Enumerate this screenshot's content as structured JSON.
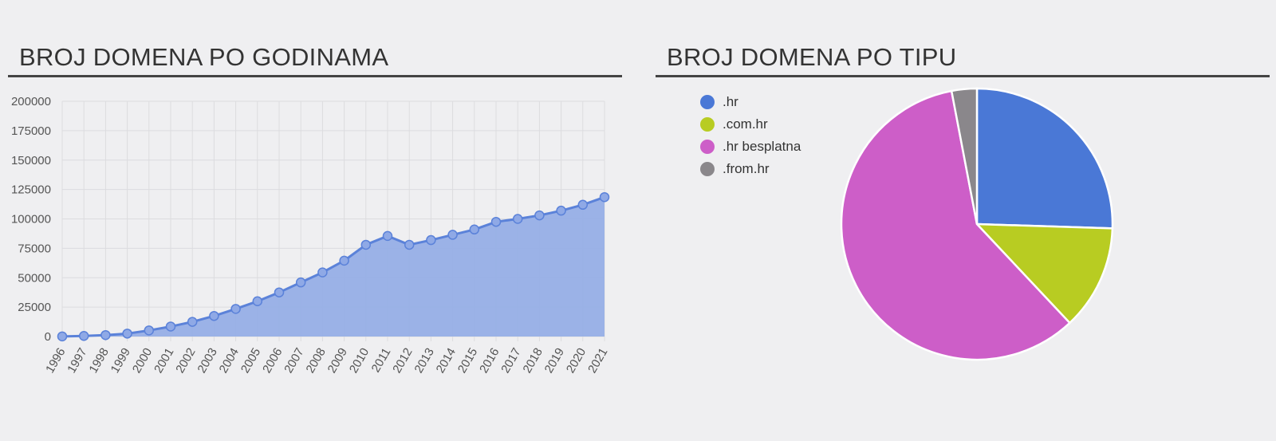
{
  "left": {
    "title": "BROJ DOMENA PO GODINAMA"
  },
  "right": {
    "title": "BROJ DOMENA PO TIPU"
  },
  "colors": {
    "line": "#5b82d9",
    "area": "#94ade6",
    "grid": "#dcdcdf",
    "axis_text": "#555555"
  },
  "chart_data": [
    {
      "type": "area",
      "title": "BROJ DOMENA PO GODINAMA",
      "categories": [
        "1996",
        "1997",
        "1998",
        "1999",
        "2000",
        "2001",
        "2002",
        "2003",
        "2004",
        "2005",
        "2006",
        "2007",
        "2008",
        "2009",
        "2010",
        "2011",
        "2012",
        "2013",
        "2014",
        "2015",
        "2016",
        "2017",
        "2018",
        "2019",
        "2020",
        "2021"
      ],
      "series": [
        {
          "values": [
            100,
            500,
            1200,
            2500,
            5200,
            8500,
            12500,
            17500,
            23500,
            30000,
            37500,
            46000,
            54500,
            64500,
            78000,
            85500,
            78000,
            82000,
            86500,
            91000,
            97500,
            100000,
            103000,
            107000,
            112000,
            118500
          ]
        }
      ],
      "ylim": [
        0,
        200000
      ],
      "yticks": [
        "0",
        "25000",
        "50000",
        "75000",
        "100000",
        "125000",
        "150000",
        "175000",
        "200000"
      ],
      "grid": true
    },
    {
      "type": "pie",
      "title": "BROJ DOMENA PO TIPU",
      "legend_position": "top-left",
      "slices": [
        {
          "label": ".hr",
          "value": 25.5,
          "color": "#4a78d6"
        },
        {
          "label": ".com.hr",
          "value": 12.5,
          "color": "#b8cc22"
        },
        {
          "label": ".hr besplatna",
          "value": 59.0,
          "color": "#cd5ec8"
        },
        {
          "label": ".from.hr",
          "value": 3.0,
          "color": "#8a878b"
        }
      ]
    }
  ]
}
